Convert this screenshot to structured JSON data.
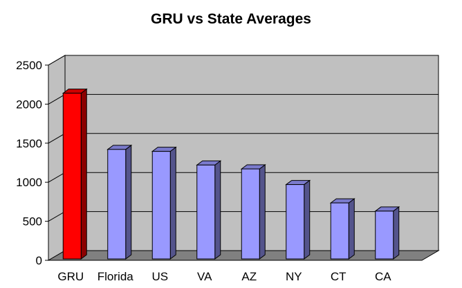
{
  "chart_data": {
    "type": "bar",
    "title": "GRU vs State Averages",
    "xlabel": "",
    "ylabel": "",
    "categories": [
      "GRU",
      "Florida",
      "US",
      "VA",
      "AZ",
      "NY",
      "CT",
      "CA"
    ],
    "values": [
      2140,
      1420,
      1395,
      1220,
      1170,
      970,
      735,
      630
    ],
    "highlight_color": "#ff0000",
    "bar_color": "#9999ff",
    "plot_background": "#c0c0c0",
    "floor_color": "#808080",
    "grid": true,
    "legend": "none",
    "ylim": [
      0,
      2500
    ],
    "yticks": [
      "0",
      "500",
      "1000",
      "1500",
      "2000",
      "2500"
    ]
  }
}
